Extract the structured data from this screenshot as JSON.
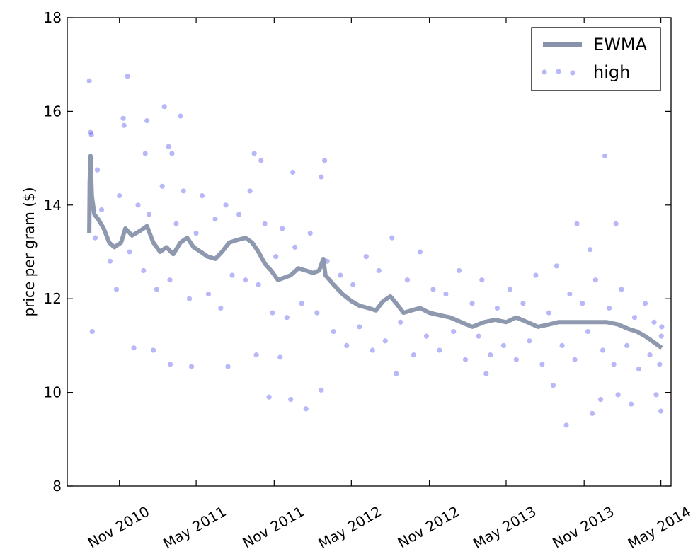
{
  "chart_data": {
    "type": "scatter",
    "title": "",
    "xlabel": "",
    "ylabel": "price per gram ($)",
    "ylim": [
      8,
      18
    ],
    "xlim": [
      "2010-07-01",
      "2014-05-25"
    ],
    "x_ticks": [
      "Nov 2010",
      "May 2011",
      "Nov 2011",
      "May 2012",
      "Nov 2012",
      "May 2013",
      "Nov 2013",
      "May 2014"
    ],
    "x_tick_dates": [
      "2010-11-01",
      "2011-05-01",
      "2011-11-01",
      "2012-05-01",
      "2012-11-01",
      "2013-05-01",
      "2013-11-01",
      "2014-05-01"
    ],
    "y_ticks": [
      8,
      10,
      12,
      14,
      16,
      18
    ],
    "legend_position": "top-right",
    "grid": false,
    "series": [
      {
        "name": "EWMA",
        "kind": "line",
        "color": "#8892aa",
        "points": [
          [
            "2010-08-22",
            13.4
          ],
          [
            "2010-08-23",
            14.5
          ],
          [
            "2010-08-25",
            15.05
          ],
          [
            "2010-08-28",
            14.2
          ],
          [
            "2010-09-03",
            13.8
          ],
          [
            "2010-09-12",
            13.7
          ],
          [
            "2010-09-25",
            13.5
          ],
          [
            "2010-10-08",
            13.2
          ],
          [
            "2010-10-20",
            13.1
          ],
          [
            "2010-11-05",
            13.2
          ],
          [
            "2010-11-15",
            13.5
          ],
          [
            "2010-12-01",
            13.35
          ],
          [
            "2010-12-20",
            13.45
          ],
          [
            "2011-01-05",
            13.55
          ],
          [
            "2011-01-20",
            13.2
          ],
          [
            "2011-02-05",
            13.0
          ],
          [
            "2011-02-20",
            13.1
          ],
          [
            "2011-03-08",
            12.95
          ],
          [
            "2011-03-25",
            13.2
          ],
          [
            "2011-04-10",
            13.3
          ],
          [
            "2011-04-25",
            13.1
          ],
          [
            "2011-05-12",
            13.0
          ],
          [
            "2011-05-28",
            12.9
          ],
          [
            "2011-06-15",
            12.85
          ],
          [
            "2011-07-01",
            13.0
          ],
          [
            "2011-07-18",
            13.2
          ],
          [
            "2011-08-05",
            13.25
          ],
          [
            "2011-08-25",
            13.3
          ],
          [
            "2011-09-10",
            13.2
          ],
          [
            "2011-09-25",
            13.0
          ],
          [
            "2011-10-10",
            12.75
          ],
          [
            "2011-10-25",
            12.6
          ],
          [
            "2011-11-10",
            12.4
          ],
          [
            "2011-11-25",
            12.45
          ],
          [
            "2011-12-10",
            12.5
          ],
          [
            "2011-12-28",
            12.65
          ],
          [
            "2012-01-15",
            12.6
          ],
          [
            "2012-02-01",
            12.55
          ],
          [
            "2012-02-15",
            12.6
          ],
          [
            "2012-02-25",
            12.85
          ],
          [
            "2012-03-01",
            12.5
          ],
          [
            "2012-03-20",
            12.3
          ],
          [
            "2012-04-10",
            12.1
          ],
          [
            "2012-05-01",
            11.95
          ],
          [
            "2012-05-20",
            11.85
          ],
          [
            "2012-06-10",
            11.8
          ],
          [
            "2012-06-28",
            11.75
          ],
          [
            "2012-07-15",
            11.95
          ],
          [
            "2012-08-01",
            12.05
          ],
          [
            "2012-08-15",
            11.9
          ],
          [
            "2012-09-01",
            11.7
          ],
          [
            "2012-09-20",
            11.75
          ],
          [
            "2012-10-10",
            11.8
          ],
          [
            "2012-11-01",
            11.7
          ],
          [
            "2012-11-25",
            11.65
          ],
          [
            "2012-12-20",
            11.6
          ],
          [
            "2013-01-15",
            11.5
          ],
          [
            "2013-02-10",
            11.4
          ],
          [
            "2013-03-10",
            11.5
          ],
          [
            "2013-04-05",
            11.55
          ],
          [
            "2013-05-01",
            11.5
          ],
          [
            "2013-05-25",
            11.6
          ],
          [
            "2013-06-20",
            11.5
          ],
          [
            "2013-07-15",
            11.4
          ],
          [
            "2013-08-10",
            11.45
          ],
          [
            "2013-09-01",
            11.5
          ],
          [
            "2013-10-01",
            11.5
          ],
          [
            "2013-11-01",
            11.5
          ],
          [
            "2013-12-01",
            11.5
          ],
          [
            "2013-12-25",
            11.5
          ],
          [
            "2014-01-20",
            11.45
          ],
          [
            "2014-02-15",
            11.35
          ],
          [
            "2014-03-05",
            11.3
          ],
          [
            "2014-03-25",
            11.2
          ],
          [
            "2014-04-10",
            11.1
          ],
          [
            "2014-04-25",
            11.0
          ],
          [
            "2014-05-03",
            10.95
          ]
        ]
      },
      {
        "name": "high",
        "kind": "scatter",
        "color": "#4d4df0",
        "points": [
          [
            "2010-08-22",
            16.65
          ],
          [
            "2010-08-25",
            15.55
          ],
          [
            "2010-08-27",
            15.5
          ],
          [
            "2010-09-10",
            14.75
          ],
          [
            "2010-11-20",
            16.75
          ],
          [
            "2010-11-10",
            15.85
          ],
          [
            "2010-11-12",
            15.7
          ],
          [
            "2011-02-15",
            16.1
          ],
          [
            "2011-01-05",
            15.8
          ],
          [
            "2011-03-25",
            15.9
          ],
          [
            "2011-02-25",
            15.25
          ],
          [
            "2011-01-01",
            15.1
          ],
          [
            "2011-03-05",
            15.1
          ],
          [
            "2011-09-15",
            15.1
          ],
          [
            "2011-10-01",
            14.95
          ],
          [
            "2012-02-28",
            14.95
          ],
          [
            "2011-12-15",
            14.7
          ],
          [
            "2012-02-20",
            14.6
          ],
          [
            "2013-12-20",
            15.05
          ],
          [
            "2014-01-15",
            13.6
          ],
          [
            "2013-10-15",
            13.6
          ],
          [
            "2013-11-15",
            13.05
          ],
          [
            "2010-08-29",
            11.3
          ],
          [
            "2010-12-05",
            10.95
          ],
          [
            "2011-01-20",
            10.9
          ],
          [
            "2011-03-01",
            10.6
          ],
          [
            "2011-04-20",
            10.55
          ],
          [
            "2011-07-15",
            10.55
          ],
          [
            "2011-09-20",
            10.8
          ],
          [
            "2011-10-20",
            9.9
          ],
          [
            "2011-11-15",
            10.75
          ],
          [
            "2011-12-10",
            9.85
          ],
          [
            "2012-01-15",
            9.65
          ],
          [
            "2012-02-20",
            10.05
          ],
          [
            "2012-08-15",
            10.4
          ],
          [
            "2013-03-15",
            10.4
          ],
          [
            "2013-08-20",
            10.15
          ],
          [
            "2013-09-20",
            9.3
          ],
          [
            "2013-11-20",
            9.55
          ],
          [
            "2013-12-10",
            9.85
          ],
          [
            "2014-01-20",
            9.95
          ],
          [
            "2014-02-20",
            9.75
          ],
          [
            "2014-04-20",
            9.95
          ],
          [
            "2014-05-01",
            9.6
          ],
          [
            "2010-09-05",
            13.3
          ],
          [
            "2010-09-20",
            13.9
          ],
          [
            "2010-10-10",
            12.8
          ],
          [
            "2010-10-25",
            12.2
          ],
          [
            "2010-11-01",
            14.2
          ],
          [
            "2010-11-25",
            13.0
          ],
          [
            "2010-12-15",
            14.0
          ],
          [
            "2010-12-28",
            12.6
          ],
          [
            "2011-01-10",
            13.8
          ],
          [
            "2011-01-28",
            12.2
          ],
          [
            "2011-02-10",
            14.4
          ],
          [
            "2011-02-28",
            12.4
          ],
          [
            "2011-03-15",
            13.6
          ],
          [
            "2011-04-01",
            14.3
          ],
          [
            "2011-04-15",
            12.0
          ],
          [
            "2011-05-01",
            13.4
          ],
          [
            "2011-05-15",
            14.2
          ],
          [
            "2011-05-30",
            12.1
          ],
          [
            "2011-06-15",
            13.7
          ],
          [
            "2011-06-28",
            11.8
          ],
          [
            "2011-07-10",
            14.0
          ],
          [
            "2011-07-25",
            12.5
          ],
          [
            "2011-08-10",
            13.8
          ],
          [
            "2011-08-25",
            12.4
          ],
          [
            "2011-09-05",
            14.3
          ],
          [
            "2011-09-25",
            12.3
          ],
          [
            "2011-10-10",
            13.6
          ],
          [
            "2011-10-28",
            11.7
          ],
          [
            "2011-11-05",
            12.9
          ],
          [
            "2011-11-20",
            13.5
          ],
          [
            "2011-12-01",
            11.6
          ],
          [
            "2011-12-20",
            13.1
          ],
          [
            "2012-01-05",
            11.9
          ],
          [
            "2012-01-25",
            13.4
          ],
          [
            "2012-02-10",
            11.7
          ],
          [
            "2012-03-05",
            12.8
          ],
          [
            "2012-03-20",
            11.3
          ],
          [
            "2012-04-05",
            12.5
          ],
          [
            "2012-04-20",
            11.0
          ],
          [
            "2012-05-05",
            12.3
          ],
          [
            "2012-05-20",
            11.4
          ],
          [
            "2012-06-05",
            12.9
          ],
          [
            "2012-06-20",
            10.9
          ],
          [
            "2012-07-05",
            12.6
          ],
          [
            "2012-07-20",
            11.1
          ],
          [
            "2012-08-05",
            13.3
          ],
          [
            "2012-08-25",
            11.5
          ],
          [
            "2012-09-10",
            12.4
          ],
          [
            "2012-09-25",
            10.8
          ],
          [
            "2012-10-10",
            13.0
          ],
          [
            "2012-10-25",
            11.2
          ],
          [
            "2012-11-10",
            12.2
          ],
          [
            "2012-11-25",
            10.9
          ],
          [
            "2012-12-10",
            12.1
          ],
          [
            "2012-12-28",
            11.3
          ],
          [
            "2013-01-10",
            12.6
          ],
          [
            "2013-01-25",
            10.7
          ],
          [
            "2013-02-10",
            11.9
          ],
          [
            "2013-02-25",
            11.2
          ],
          [
            "2013-03-05",
            12.4
          ],
          [
            "2013-03-25",
            10.8
          ],
          [
            "2013-04-10",
            11.8
          ],
          [
            "2013-04-25",
            11.0
          ],
          [
            "2013-05-10",
            12.2
          ],
          [
            "2013-05-25",
            10.7
          ],
          [
            "2013-06-10",
            11.9
          ],
          [
            "2013-06-25",
            11.1
          ],
          [
            "2013-07-10",
            12.5
          ],
          [
            "2013-07-25",
            10.6
          ],
          [
            "2013-08-10",
            11.7
          ],
          [
            "2013-08-28",
            12.7
          ],
          [
            "2013-09-10",
            11.0
          ],
          [
            "2013-09-28",
            12.1
          ],
          [
            "2013-10-10",
            10.7
          ],
          [
            "2013-10-28",
            11.9
          ],
          [
            "2013-11-10",
            11.3
          ],
          [
            "2013-11-28",
            12.4
          ],
          [
            "2013-12-15",
            10.9
          ],
          [
            "2013-12-30",
            11.8
          ],
          [
            "2014-01-10",
            10.6
          ],
          [
            "2014-01-28",
            12.2
          ],
          [
            "2014-02-10",
            11.0
          ],
          [
            "2014-02-28",
            11.6
          ],
          [
            "2014-03-10",
            10.5
          ],
          [
            "2014-03-25",
            11.9
          ],
          [
            "2014-04-05",
            10.8
          ],
          [
            "2014-04-15",
            11.5
          ],
          [
            "2014-04-28",
            10.6
          ],
          [
            "2014-05-02",
            11.2
          ],
          [
            "2014-05-03",
            11.4
          ]
        ]
      }
    ]
  }
}
